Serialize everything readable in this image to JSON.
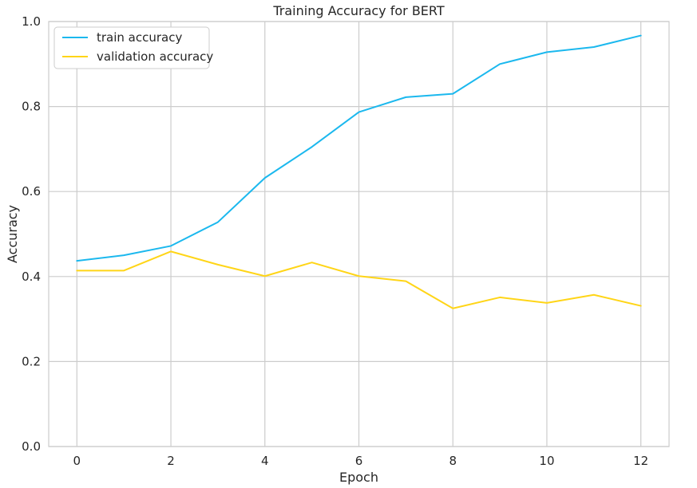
{
  "chart_data": {
    "type": "line",
    "title": "Training Accuracy for BERT",
    "xlabel": "Epoch",
    "ylabel": "Accuracy",
    "xlim": [
      -0.6,
      12.6
    ],
    "ylim": [
      0.0,
      1.0
    ],
    "x_ticks": [
      0,
      2,
      4,
      6,
      8,
      10,
      12
    ],
    "y_ticks": [
      0.0,
      0.2,
      0.4,
      0.6,
      0.8,
      1.0
    ],
    "y_tick_labels": [
      "0.0",
      "0.2",
      "0.4",
      "0.6",
      "0.8",
      "1.0"
    ],
    "grid": true,
    "legend_position": "top-left",
    "x": [
      0,
      1,
      2,
      3,
      4,
      5,
      6,
      7,
      8,
      9,
      10,
      11,
      12
    ],
    "series": [
      {
        "name": "train accuracy",
        "color": "#1bb8ee",
        "values": [
          0.437,
          0.45,
          0.472,
          0.528,
          0.632,
          0.705,
          0.787,
          0.822,
          0.83,
          0.9,
          0.928,
          0.94,
          0.967
        ]
      },
      {
        "name": "validation accuracy",
        "color": "#ffd517",
        "values": [
          0.414,
          0.414,
          0.459,
          0.428,
          0.401,
          0.433,
          0.401,
          0.389,
          0.325,
          0.351,
          0.338,
          0.357,
          0.331
        ]
      }
    ]
  }
}
